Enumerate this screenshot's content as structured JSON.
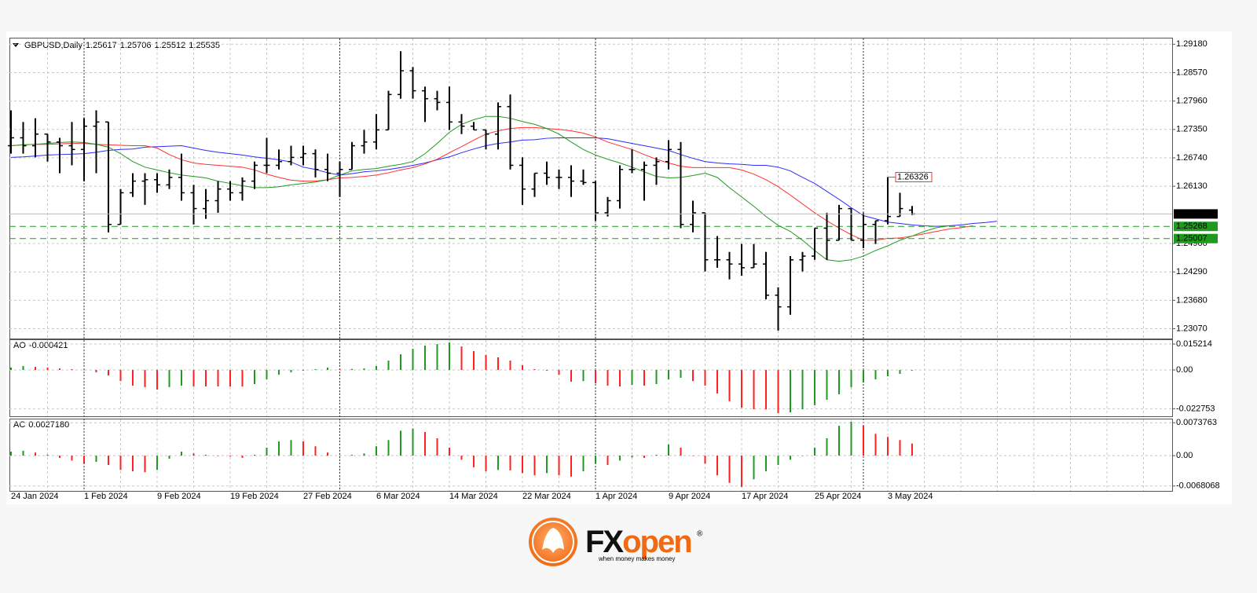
{
  "chart_data": [
    {
      "type": "ohlc",
      "title": "GBPUSD,Daily",
      "color": "#000000",
      "categories": [
        "24 Jan 2024",
        null,
        null,
        null,
        null,
        null,
        "1 Feb 2024",
        null,
        null,
        null,
        null,
        null,
        "9 Feb 2024",
        null,
        null,
        null,
        null,
        null,
        "19 Feb 2024",
        null,
        null,
        null,
        null,
        null,
        "27 Feb 2024",
        null,
        null,
        null,
        null,
        null,
        "6 Mar 2024",
        null,
        null,
        null,
        null,
        null,
        "14 Mar 2024",
        null,
        null,
        null,
        null,
        null,
        "22 Mar 2024",
        null,
        null,
        null,
        null,
        null,
        "1 Apr 2024",
        null,
        null,
        null,
        null,
        null,
        "9 Apr 2024",
        null,
        null,
        null,
        null,
        null,
        "17 Apr 2024",
        null,
        null,
        null,
        null,
        null,
        "25 Apr 2024",
        null,
        null,
        null,
        null,
        null,
        "3 May 2024",
        null,
        null,
        null,
        null,
        null,
        null,
        null,
        null,
        null
      ],
      "open": [
        1.27,
        1.2717,
        1.27,
        1.2725,
        1.2708,
        1.27,
        1.2692,
        1.2742,
        1.2751,
        1.2531,
        1.2599,
        1.2624,
        1.2627,
        1.2616,
        1.2632,
        1.2599,
        1.2565,
        1.2582,
        1.2607,
        1.2599,
        1.2624,
        1.2658,
        1.2658,
        1.2666,
        1.2675,
        1.2683,
        1.2649,
        1.2641,
        1.2649,
        1.27,
        1.2708,
        1.2734,
        1.281,
        1.2861,
        1.2818,
        1.2801,
        1.2793,
        1.2751,
        1.2742,
        1.2734,
        1.2725,
        1.2784,
        1.2658,
        1.2607,
        1.2641,
        1.2632,
        1.2632,
        1.2624,
        1.2621,
        1.2556,
        1.2582,
        1.2649,
        1.2649,
        1.2658,
        1.2666,
        1.2692,
        1.2531,
        1.2556,
        1.2455,
        1.2455,
        1.2446,
        1.2438,
        1.2446,
        1.2379,
        1.2354,
        1.2455,
        1.2463,
        1.2523,
        1.2497,
        1.2565,
        1.2497,
        1.2531,
        1.2539,
        1.2548,
        1.25617,
        null,
        null,
        null,
        null,
        null,
        null,
        null
      ],
      "high": [
        1.2776,
        1.2751,
        1.2759,
        1.2725,
        1.2717,
        1.2751,
        1.2759,
        1.2776,
        1.2751,
        1.2607,
        1.2641,
        1.2641,
        1.2641,
        1.2649,
        1.2683,
        1.2616,
        1.2607,
        1.2624,
        1.2624,
        1.2632,
        1.2666,
        1.2717,
        1.2692,
        1.27,
        1.27,
        1.2692,
        1.2683,
        1.2666,
        1.2708,
        1.2734,
        1.2768,
        1.2818,
        1.2903,
        1.2869,
        1.2827,
        1.2818,
        1.2827,
        1.2768,
        1.2751,
        1.2734,
        1.2793,
        1.281,
        1.2675,
        1.2641,
        1.2666,
        1.2649,
        1.2658,
        1.2649,
        1.2624,
        1.259,
        1.2658,
        1.2692,
        1.2666,
        1.2675,
        1.2712,
        1.2708,
        1.2582,
        1.2556,
        1.2506,
        1.2472,
        1.2489,
        1.2489,
        1.2472,
        1.2396,
        1.2463,
        1.2472,
        1.2523,
        1.2556,
        1.2573,
        1.2565,
        1.2556,
        1.2539,
        1.26326,
        1.2599,
        1.25706,
        null,
        null,
        null,
        null,
        null,
        null,
        null
      ],
      "low": [
        1.2683,
        1.2683,
        1.2675,
        1.2666,
        1.2641,
        1.2658,
        1.2624,
        1.2641,
        1.2514,
        1.2531,
        1.259,
        1.2573,
        1.2599,
        1.2607,
        1.2582,
        1.2531,
        1.2543,
        1.2556,
        1.2582,
        1.2582,
        1.2607,
        1.2641,
        1.2649,
        1.2658,
        1.2658,
        1.2632,
        1.2624,
        1.259,
        1.2649,
        1.2683,
        1.2692,
        1.2734,
        1.2801,
        1.2801,
        1.2751,
        1.2776,
        1.2734,
        1.2725,
        1.2734,
        1.2692,
        1.2692,
        1.2649,
        1.2573,
        1.259,
        1.2616,
        1.2607,
        1.259,
        1.2616,
        1.2539,
        1.2548,
        1.2565,
        1.2641,
        1.2582,
        1.2616,
        1.2649,
        1.2523,
        1.2514,
        1.243,
        1.2438,
        1.2413,
        1.2421,
        1.2438,
        1.237,
        1.2303,
        1.2337,
        1.243,
        1.2455,
        1.2455,
        1.2497,
        1.2497,
        1.248,
        1.2489,
        1.2531,
        1.2548,
        1.25512,
        null,
        null,
        null,
        null,
        null,
        null,
        null
      ],
      "close": [
        1.2717,
        1.27,
        1.2725,
        1.2708,
        1.27,
        1.2692,
        1.2742,
        1.2751,
        1.2531,
        1.2599,
        1.2624,
        1.2627,
        1.2616,
        1.2632,
        1.2599,
        1.2565,
        1.2582,
        1.2607,
        1.2599,
        1.2624,
        1.2658,
        1.2658,
        1.2666,
        1.2675,
        1.2683,
        1.2649,
        1.2641,
        1.2649,
        1.27,
        1.2708,
        1.2734,
        1.281,
        1.2861,
        1.2818,
        1.2801,
        1.2793,
        1.2751,
        1.2742,
        1.2734,
        1.2725,
        1.2784,
        1.2658,
        1.2607,
        1.2641,
        1.2632,
        1.2632,
        1.2624,
        1.2621,
        1.2556,
        1.2582,
        1.2649,
        1.2649,
        1.2658,
        1.2666,
        1.2692,
        1.2531,
        1.2556,
        1.2455,
        1.2455,
        1.2446,
        1.2438,
        1.2446,
        1.2379,
        1.2354,
        1.2455,
        1.2463,
        1.2523,
        1.2497,
        1.2565,
        1.2497,
        1.2531,
        1.2539,
        1.2548,
        1.2565,
        1.25535,
        null,
        null,
        null,
        null,
        null,
        null,
        null
      ],
      "overlays": [
        {
          "color": "#2b2bff",
          "values": [
            1.2675,
            1.2676,
            1.2678,
            1.268,
            1.2681,
            1.2682,
            1.2683,
            1.2686,
            1.269,
            1.2692,
            1.2693,
            1.2697,
            1.2698,
            1.2699,
            1.27,
            1.2695,
            1.269,
            1.2686,
            1.2683,
            1.268,
            1.2676,
            1.2673,
            1.267,
            1.2665,
            1.2654,
            1.2649,
            1.2642,
            1.2637,
            1.264,
            1.2644,
            1.2646,
            1.2649,
            1.2653,
            1.2658,
            1.2663,
            1.267,
            1.2676,
            1.2685,
            1.2693,
            1.27,
            1.2705,
            1.2708,
            1.2712,
            1.2713,
            1.2716,
            1.2717,
            1.2717,
            1.2717,
            1.2717,
            1.2715,
            1.271,
            1.2705,
            1.27,
            1.2695,
            1.269,
            1.2681,
            1.2673,
            1.2666,
            1.2663,
            1.2661,
            1.266,
            1.2658,
            1.2658,
            1.2654,
            1.2646,
            1.2632,
            1.2619,
            1.2602,
            1.2585,
            1.2567,
            1.255,
            1.2543,
            1.2536,
            1.2533,
            1.253,
            1.2528,
            1.2527,
            1.2528,
            1.253,
            1.2533,
            1.2535,
            1.2538
          ]
        },
        {
          "color": "#ff3030",
          "values": [
            1.27,
            1.2702,
            1.2703,
            1.2703,
            1.2704,
            1.2705,
            1.2705,
            1.2703,
            1.2702,
            1.2701,
            1.27,
            1.27,
            1.2695,
            1.2681,
            1.267,
            1.2663,
            1.266,
            1.2658,
            1.2656,
            1.2654,
            1.2648,
            1.2639,
            1.2632,
            1.2626,
            1.2624,
            1.2624,
            1.2627,
            1.2631,
            1.2632,
            1.2634,
            1.2637,
            1.2642,
            1.2648,
            1.2653,
            1.2661,
            1.2671,
            1.2685,
            1.2698,
            1.2712,
            1.2725,
            1.2732,
            1.2737,
            1.2739,
            1.2739,
            1.2737,
            1.2735,
            1.2732,
            1.2727,
            1.2719,
            1.2708,
            1.27,
            1.2692,
            1.2681,
            1.2671,
            1.2663,
            1.2656,
            1.2653,
            1.2653,
            1.2653,
            1.2653,
            1.2648,
            1.2639,
            1.2627,
            1.2612,
            1.2594,
            1.2575,
            1.2556,
            1.2539,
            1.2523,
            1.2509,
            1.2497,
            1.2497,
            1.2501,
            1.2502,
            1.2506,
            1.2511,
            1.2516,
            1.2521,
            1.2524,
            1.2528,
            null,
            null
          ]
        },
        {
          "color": "#1f9a1f",
          "values": [
            1.27,
            1.2702,
            1.2703,
            1.2705,
            1.2707,
            1.2708,
            1.2707,
            1.2703,
            1.2697,
            1.2683,
            1.2666,
            1.2654,
            1.2648,
            1.2642,
            1.2637,
            1.2634,
            1.2631,
            1.2624,
            1.2619,
            1.2614,
            1.261,
            1.261,
            1.2612,
            1.2616,
            1.2619,
            1.2622,
            1.2627,
            1.2637,
            1.2646,
            1.2649,
            1.2651,
            1.2656,
            1.266,
            1.2666,
            1.2683,
            1.2705,
            1.2729,
            1.2746,
            1.2756,
            1.2763,
            1.2763,
            1.2759,
            1.2752,
            1.2746,
            1.2737,
            1.2725,
            1.2708,
            1.2692,
            1.268,
            1.2671,
            1.2663,
            1.2654,
            1.2644,
            1.2634,
            1.2631,
            1.2632,
            1.2636,
            1.2641,
            1.2632,
            1.261,
            1.259,
            1.257,
            1.2548,
            1.2529,
            1.2516,
            1.2497,
            1.2475,
            1.2455,
            1.2452,
            1.2455,
            1.2463,
            1.2475,
            1.2485,
            1.2497,
            1.2506,
            1.2516,
            1.2524,
            1.2528,
            null,
            null,
            null,
            null
          ]
        }
      ],
      "levels": [
        {
          "value": 1.25268,
          "color": "#1f9a1f"
        },
        {
          "value": 1.25007,
          "color": "#1f9a1f"
        }
      ],
      "high_label_color": "#ff3030",
      "ylim": [
        1.2286,
        1.2932
      ],
      "yticks": [
        {
          "value": 1.2918,
          "label": "1.29180"
        },
        {
          "value": 1.2857,
          "label": "1.28570"
        },
        {
          "value": 1.2796,
          "label": "1.27960"
        },
        {
          "value": 1.2735,
          "label": "1.27350"
        },
        {
          "value": 1.2674,
          "label": "1.26740"
        },
        {
          "value": 1.2613,
          "label": "1.26130"
        },
        {
          "value": 1.249,
          "label": "1.24900"
        },
        {
          "value": 1.2429,
          "label": "1.24290"
        },
        {
          "value": 1.2368,
          "label": "1.23680"
        },
        {
          "value": 1.2307,
          "label": "1.23070"
        }
      ],
      "grid": true
    },
    {
      "type": "bar",
      "title": "AO",
      "up_color": "#1f9a1f",
      "down_color": "#ff2020",
      "values": [
        0.0014,
        0.0023,
        0.0018,
        0.0014,
        0.0009,
        0.0005,
        0.0001,
        -0.0014,
        -0.0032,
        -0.0065,
        -0.0092,
        -0.0101,
        -0.0115,
        -0.0101,
        -0.0092,
        -0.0097,
        -0.0097,
        -0.0097,
        -0.0098,
        -0.0098,
        -0.0083,
        -0.0055,
        -0.0028,
        -0.0014,
        -0.0005,
        0.0005,
        0.0014,
        0.0005,
        0.0006,
        0.0009,
        0.0023,
        0.0055,
        0.0092,
        0.0124,
        0.0143,
        0.0152,
        0.0161,
        0.0138,
        0.0111,
        0.0088,
        0.0074,
        0.0055,
        0.0028,
        0.0005,
        -0.0005,
        -0.0028,
        -0.0069,
        -0.0065,
        -0.0078,
        -0.0092,
        -0.0097,
        -0.0088,
        -0.0092,
        -0.0083,
        -0.0055,
        -0.0046,
        -0.0065,
        -0.0092,
        -0.0138,
        -0.0184,
        -0.0221,
        -0.0231,
        -0.0232,
        -0.0254,
        -0.0249,
        -0.0231,
        -0.0207,
        -0.0175,
        -0.0143,
        -0.0101,
        -0.0074,
        -0.0055,
        -0.0037,
        -0.0023,
        -0.000421
      ],
      "ylim": [
        -0.0272,
        0.018
      ],
      "yticks": [
        0.015214,
        {
          "value": 0,
          "label": "0.00"
        },
        -0.022753
      ],
      "grid": true
    },
    {
      "type": "bar",
      "title": "AC",
      "up_color": "#1f9a1f",
      "down_color": "#ff2020",
      "values": [
        0.0009,
        0.0011,
        0.0007,
        0.0002,
        -0.0005,
        -0.0011,
        -0.0018,
        -0.0014,
        -0.0021,
        -0.0032,
        -0.0035,
        -0.0037,
        -0.0032,
        -0.0007,
        0.0009,
        0.0005,
        0.0002,
        0.0,
        -0.0002,
        -0.0005,
        0.0002,
        0.0018,
        0.0032,
        0.0035,
        0.0032,
        0.0021,
        0.0007,
        0.0001,
        0.0002,
        0.0005,
        0.0021,
        0.0035,
        0.0056,
        0.0061,
        0.0053,
        0.0039,
        0.0018,
        -0.0009,
        -0.0026,
        -0.0035,
        -0.0032,
        -0.0033,
        -0.0039,
        -0.0044,
        -0.0039,
        -0.0044,
        -0.0047,
        -0.0035,
        -0.0018,
        -0.0021,
        -0.0011,
        -0.0004,
        -0.0005,
        0.0002,
        0.0025,
        0.0018,
        0.0,
        -0.0018,
        -0.0044,
        -0.0061,
        -0.007,
        -0.0053,
        -0.0035,
        -0.0021,
        -0.0009,
        0.0,
        0.0018,
        0.0039,
        0.0067,
        0.0076,
        0.0067,
        0.0049,
        0.0042,
        0.0035,
        0.002718
      ],
      "last_value_label": "0.0027180",
      "ylim": [
        -0.0079,
        0.0083
      ],
      "yticks": [
        0.0073763,
        {
          "value": 0,
          "label": "0.00"
        },
        -0.0068068
      ],
      "grid": true
    }
  ],
  "footer": {
    "brand_prefix": "FX",
    "brand_suffix": "open",
    "mark": "®",
    "tagline": "when money makes money"
  }
}
